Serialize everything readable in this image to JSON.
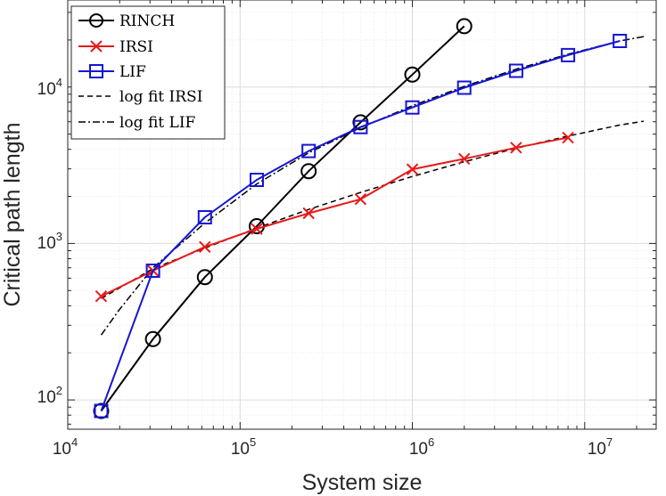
{
  "chart_data": {
    "type": "line",
    "xscale": "log",
    "yscale": "log",
    "xlabel": "System size",
    "ylabel": "Critical path length",
    "xlim": [
      10000,
      26000000
    ],
    "ylim": [
      65,
      36000
    ],
    "grid": true,
    "legend_position": "top-left",
    "x_ticks": [
      {
        "base": "10",
        "exp": "4",
        "value": 10000
      },
      {
        "base": "10",
        "exp": "5",
        "value": 100000
      },
      {
        "base": "10",
        "exp": "6",
        "value": 1000000
      },
      {
        "base": "10",
        "exp": "7",
        "value": 10000000
      }
    ],
    "y_ticks": [
      {
        "base": "10",
        "exp": "2",
        "value": 100
      },
      {
        "base": "10",
        "exp": "3",
        "value": 1000
      },
      {
        "base": "10",
        "exp": "4",
        "value": 10000
      }
    ],
    "series": [
      {
        "name": "RINCH",
        "color": "#000000",
        "marker": "circle",
        "dash": "solid",
        "x": [
          15625,
          31250,
          62500,
          125000,
          250000,
          500000,
          1000000,
          2000000
        ],
        "y": [
          85,
          245,
          610,
          1290,
          2900,
          5950,
          12000,
          24500
        ]
      },
      {
        "name": "IRSI",
        "color": "#e81919",
        "marker": "x",
        "dash": "solid",
        "x": [
          15625,
          31250,
          62500,
          125000,
          250000,
          500000,
          1000000,
          2000000,
          4000000,
          8000000
        ],
        "y": [
          460,
          670,
          950,
          1240,
          1560,
          1920,
          2980,
          3480,
          4100,
          4750
        ]
      },
      {
        "name": "LIF",
        "color": "#1515d6",
        "marker": "square",
        "dash": "solid",
        "x": [
          15625,
          31250,
          62500,
          125000,
          250000,
          500000,
          1000000,
          2000000,
          4000000,
          8000000,
          16000000
        ],
        "y": [
          85,
          670,
          1470,
          2550,
          3900,
          5550,
          7400,
          9900,
          12700,
          16000,
          19700
        ]
      },
      {
        "name": "log fit IRSI",
        "color": "#000000",
        "marker": "none",
        "dash": "dashed",
        "x": [
          15625,
          31250,
          62500,
          125000,
          250000,
          500000,
          1000000,
          2000000,
          4000000,
          8000000,
          16000000,
          22000000
        ],
        "y": [
          445,
          690,
          935,
          1255,
          1650,
          2120,
          2680,
          3330,
          4060,
          4860,
          5720,
          6050
        ]
      },
      {
        "name": "log fit LIF",
        "color": "#000000",
        "marker": "none",
        "dash": "dashdot",
        "x": [
          15625,
          20000,
          31250,
          62500,
          125000,
          250000,
          500000,
          1000000,
          2000000,
          4000000,
          8000000,
          16000000,
          22000000
        ],
        "y": [
          260,
          380,
          700,
          1350,
          2400,
          3800,
          5500,
          7600,
          10100,
          13000,
          16200,
          19700,
          21000
        ]
      }
    ]
  }
}
